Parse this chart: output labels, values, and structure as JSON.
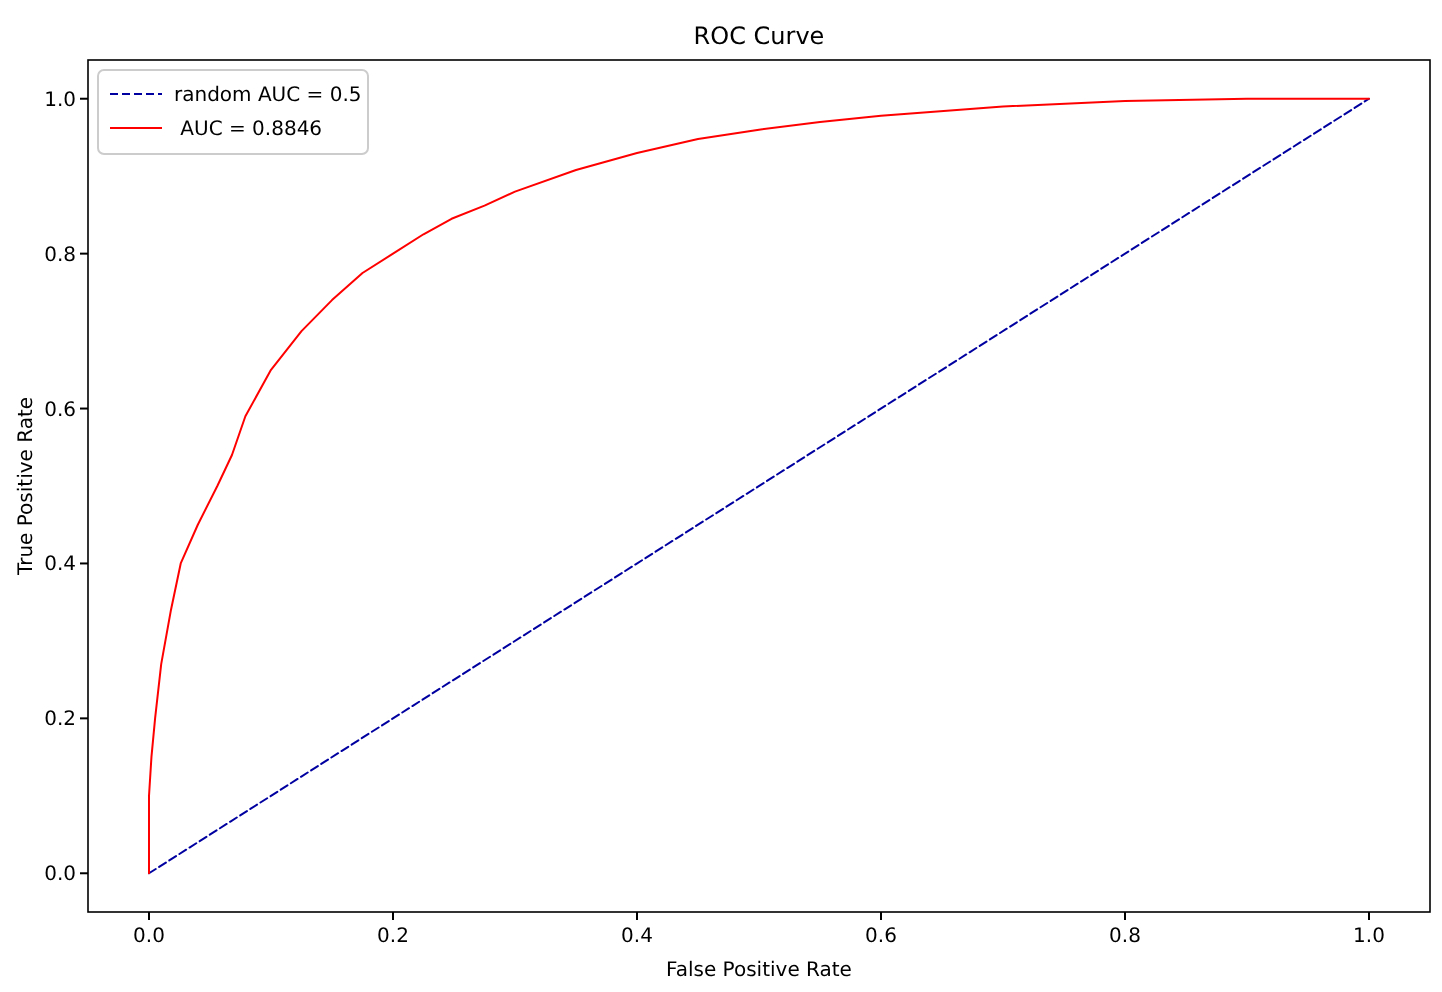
{
  "chart_data": {
    "type": "line",
    "title": "ROC Curve",
    "xlabel": "False Positive Rate",
    "ylabel": "True Positive Rate",
    "xlim": [
      -0.05,
      1.05
    ],
    "ylim": [
      -0.05,
      1.05
    ],
    "xticks": [
      {
        "value": 0,
        "label": "0.0"
      },
      {
        "value": 0.2,
        "label": "0.2"
      },
      {
        "value": 0.4,
        "label": "0.4"
      },
      {
        "value": 0.6,
        "label": "0.6"
      },
      {
        "value": 0.8,
        "label": "0.8"
      },
      {
        "value": 1,
        "label": "1.0"
      }
    ],
    "yticks": [
      {
        "value": 0,
        "label": "0.0"
      },
      {
        "value": 0.2,
        "label": "0.2"
      },
      {
        "value": 0.4,
        "label": "0.4"
      },
      {
        "value": 0.6,
        "label": "0.6"
      },
      {
        "value": 0.8,
        "label": "0.8"
      },
      {
        "value": 1,
        "label": "1.0"
      }
    ],
    "grid": false,
    "legend": "top left",
    "marker": "none",
    "series": [
      {
        "name": "random AUC = 0.5",
        "color": "#0000a0",
        "line_style": "dashed",
        "x": [
          0,
          1
        ],
        "values": [
          0,
          1
        ]
      },
      {
        "name": " AUC = 0.8846",
        "color": "#ff0000",
        "line_style": "solid",
        "x": [
          0,
          0,
          0.002,
          0.005,
          0.01,
          0.018,
          0.026,
          0.04,
          0.056,
          0.068,
          0.079,
          0.1,
          0.125,
          0.15,
          0.175,
          0.2,
          0.225,
          0.248,
          0.275,
          0.3,
          0.35,
          0.4,
          0.45,
          0.5,
          0.55,
          0.6,
          0.7,
          0.8,
          0.9,
          1
        ],
        "values": [
          0,
          0.1,
          0.15,
          0.2,
          0.27,
          0.34,
          0.4,
          0.45,
          0.5,
          0.54,
          0.59,
          0.65,
          0.7,
          0.74,
          0.775,
          0.8,
          0.825,
          0.845,
          0.862,
          0.88,
          0.908,
          0.93,
          0.948,
          0.96,
          0.97,
          0.978,
          0.99,
          0.997,
          1,
          1
        ]
      }
    ]
  }
}
